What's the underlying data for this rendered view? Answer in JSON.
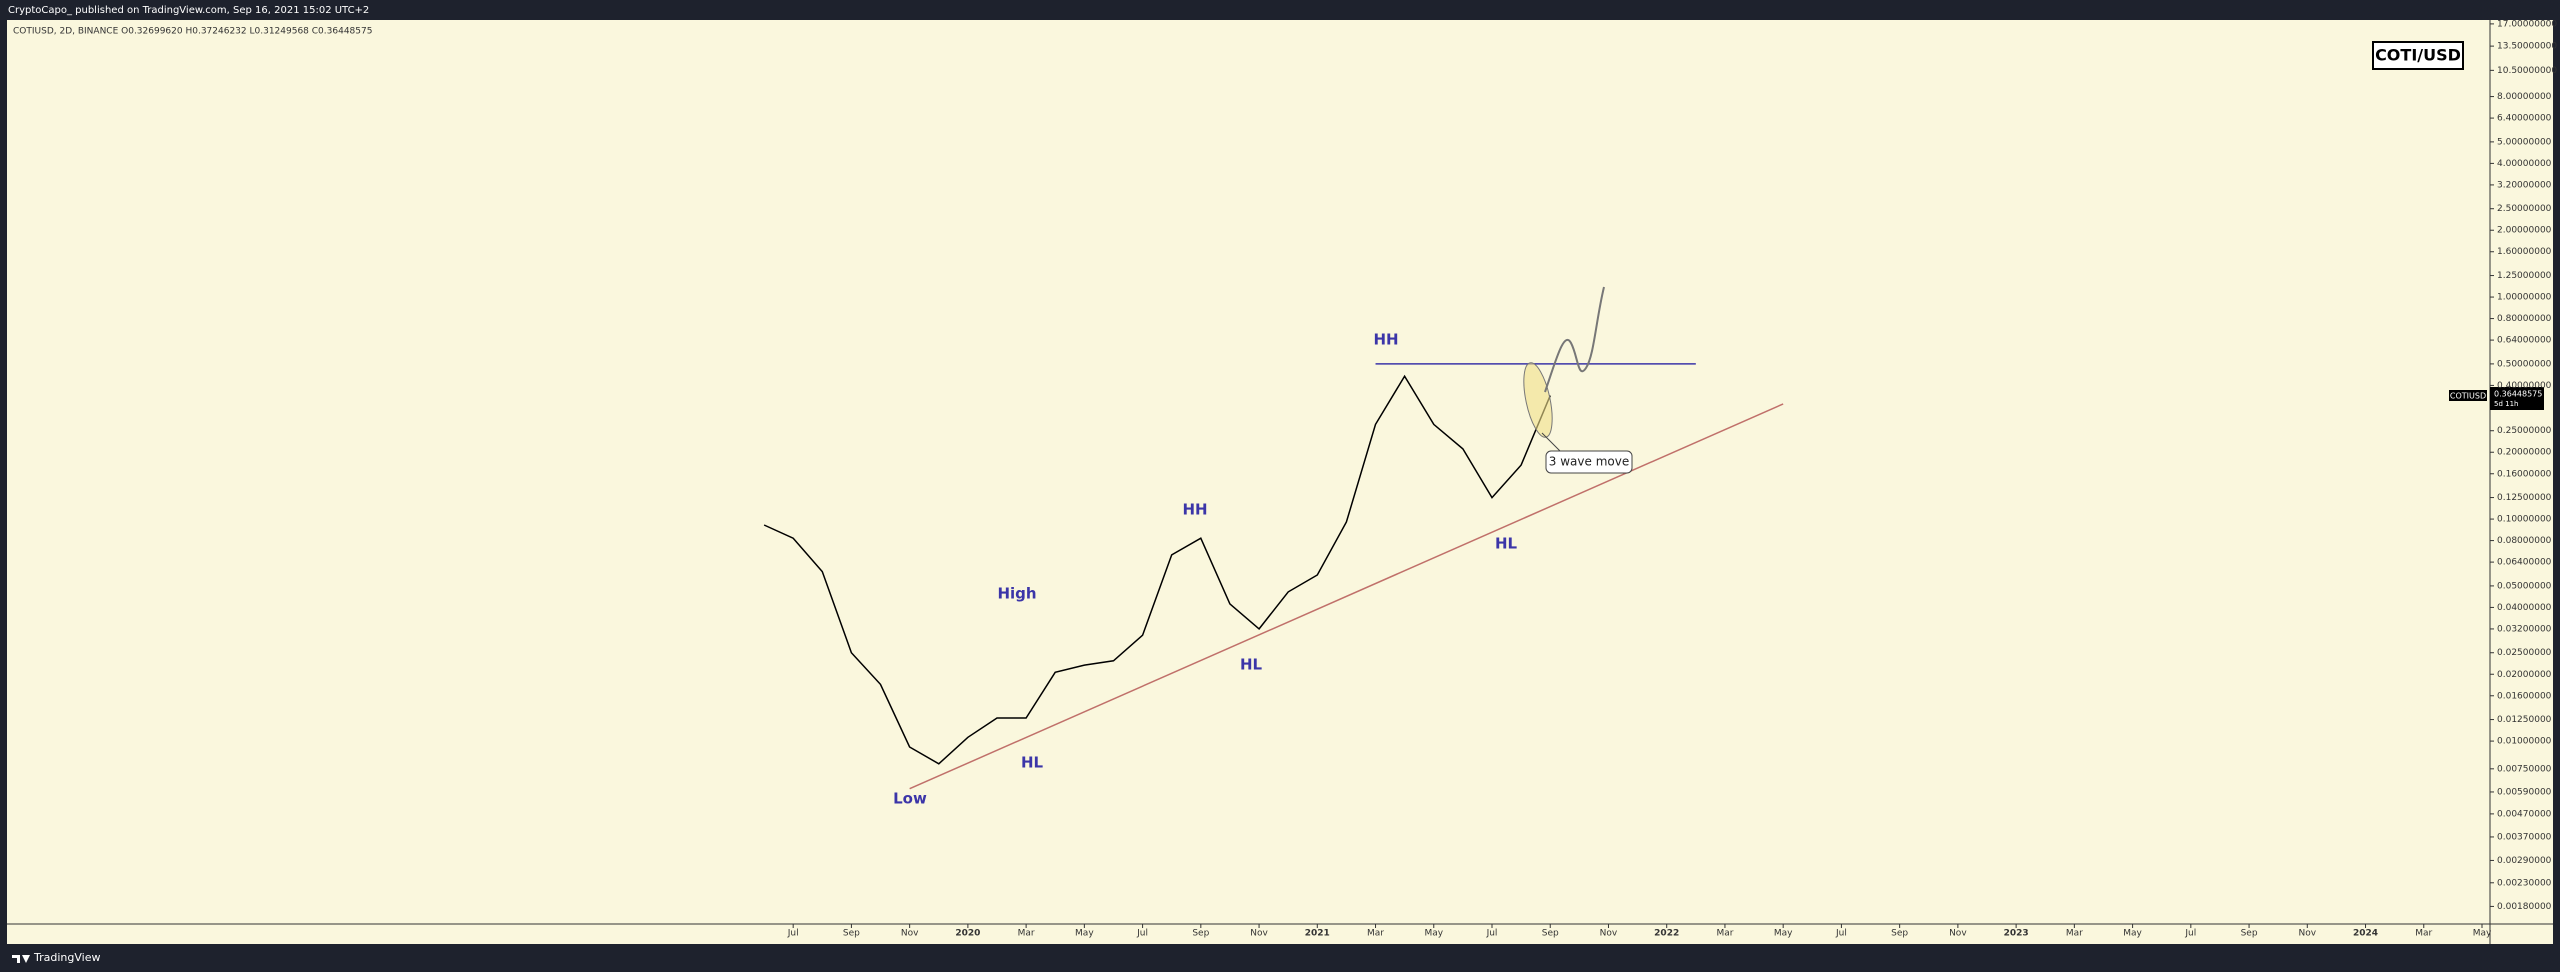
{
  "header": "CryptoCapo_ published on TradingView.com, Sep 16, 2021 15:02 UTC+2",
  "footer": "TradingView",
  "chart_data": {
    "type": "line",
    "legend_text": "COTIUSD, 2D, BINANCE  O0.32699620  H0.37246232  L0.31249568  C0.36448575",
    "symbol_box": "COTI/USD",
    "price_tag": {
      "symbol": "COTIUSD",
      "price": "0.36448575",
      "countdown": "5d 11h"
    },
    "log_scale": true,
    "ylim": [
      0.0015,
      17.7
    ],
    "xlim": [
      "2017-04",
      "2024-05"
    ],
    "yticks": [
      {
        "value": 17,
        "label": "17.00000000"
      },
      {
        "value": 13.5,
        "label": "13.50000000"
      },
      {
        "value": 10.5,
        "label": "10.50000000"
      },
      {
        "value": 8,
        "label": "8.00000000"
      },
      {
        "value": 6.4,
        "label": "6.40000000"
      },
      {
        "value": 5,
        "label": "5.00000000"
      },
      {
        "value": 4,
        "label": "4.00000000"
      },
      {
        "value": 3.2,
        "label": "3.20000000"
      },
      {
        "value": 2.5,
        "label": "2.50000000"
      },
      {
        "value": 2,
        "label": "2.00000000"
      },
      {
        "value": 1.6,
        "label": "1.60000000"
      },
      {
        "value": 1.25,
        "label": "1.25000000"
      },
      {
        "value": 1,
        "label": "1.00000000"
      },
      {
        "value": 0.8,
        "label": "0.80000000"
      },
      {
        "value": 0.64,
        "label": "0.64000000"
      },
      {
        "value": 0.5,
        "label": "0.50000000"
      },
      {
        "value": 0.4,
        "label": "0.40000000"
      },
      {
        "value": 0.25,
        "label": "0.25000000"
      },
      {
        "value": 0.2,
        "label": "0.20000000"
      },
      {
        "value": 0.16,
        "label": "0.16000000"
      },
      {
        "value": 0.125,
        "label": "0.12500000"
      },
      {
        "value": 0.1,
        "label": "0.10000000"
      },
      {
        "value": 0.08,
        "label": "0.08000000"
      },
      {
        "value": 0.064,
        "label": "0.06400000"
      },
      {
        "value": 0.05,
        "label": "0.05000000"
      },
      {
        "value": 0.04,
        "label": "0.04000000"
      },
      {
        "value": 0.032,
        "label": "0.03200000"
      },
      {
        "value": 0.025,
        "label": "0.02500000"
      },
      {
        "value": 0.02,
        "label": "0.02000000"
      },
      {
        "value": 0.016,
        "label": "0.01600000"
      },
      {
        "value": 0.0125,
        "label": "0.01250000"
      },
      {
        "value": 0.01,
        "label": "0.01000000"
      },
      {
        "value": 0.0075,
        "label": "0.00750000"
      },
      {
        "value": 0.0059,
        "label": "0.00590000"
      },
      {
        "value": 0.0047,
        "label": "0.00470000"
      },
      {
        "value": 0.0037,
        "label": "0.00370000"
      },
      {
        "value": 0.0029,
        "label": "0.00290000"
      },
      {
        "value": 0.0023,
        "label": "0.00230000"
      },
      {
        "value": 0.0018,
        "label": "0.00180000"
      }
    ],
    "xticks": [
      {
        "value": "2019-07",
        "label": "Jul"
      },
      {
        "value": "2019-09",
        "label": "Sep"
      },
      {
        "value": "2019-11",
        "label": "Nov"
      },
      {
        "value": "2020-01",
        "label": "2020"
      },
      {
        "value": "2020-03",
        "label": "Mar"
      },
      {
        "value": "2020-05",
        "label": "May"
      },
      {
        "value": "2020-07",
        "label": "Jul"
      },
      {
        "value": "2020-09",
        "label": "Sep"
      },
      {
        "value": "2020-11",
        "label": "Nov"
      },
      {
        "value": "2021-01",
        "label": "2021"
      },
      {
        "value": "2021-03",
        "label": "Mar"
      },
      {
        "value": "2021-05",
        "label": "May"
      },
      {
        "value": "2021-07",
        "label": "Jul"
      },
      {
        "value": "2021-09",
        "label": "Sep"
      },
      {
        "value": "2021-11",
        "label": "Nov"
      },
      {
        "value": "2022-01",
        "label": "2022"
      },
      {
        "value": "2022-03",
        "label": "Mar"
      },
      {
        "value": "2022-05",
        "label": "May"
      },
      {
        "value": "2022-07",
        "label": "Jul"
      },
      {
        "value": "2022-09",
        "label": "Sep"
      },
      {
        "value": "2022-11",
        "label": "Nov"
      },
      {
        "value": "2023-01",
        "label": "2023"
      },
      {
        "value": "2023-03",
        "label": "Mar"
      },
      {
        "value": "2023-05",
        "label": "May"
      },
      {
        "value": "2023-07",
        "label": "Jul"
      },
      {
        "value": "2023-09",
        "label": "Sep"
      },
      {
        "value": "2023-11",
        "label": "Nov"
      },
      {
        "value": "2024-01",
        "label": "2024"
      },
      {
        "value": "2024-03",
        "label": "Mar"
      },
      {
        "value": "2024-05",
        "label": "May"
      }
    ],
    "x": [
      "2019-06",
      "2019-07",
      "2019-08",
      "2019-09",
      "2019-10",
      "2019-11",
      "2019-12",
      "2020-01",
      "2020-02",
      "2020-03",
      "2020-04",
      "2020-05",
      "2020-06",
      "2020-07",
      "2020-08",
      "2020-09",
      "2020-10",
      "2020-11",
      "2020-12",
      "2021-01",
      "2021-02",
      "2021-03",
      "2021-04",
      "2021-05",
      "2021-06",
      "2021-07",
      "2021-08",
      "2021-09"
    ],
    "series": [
      {
        "color": "#000000",
        "values": [
          0.094,
          0.082,
          0.058,
          0.025,
          0.018,
          0.0094,
          0.0079,
          0.0104,
          0.0127,
          0.0127,
          0.0204,
          0.022,
          0.023,
          0.03,
          0.069,
          0.082,
          0.0415,
          0.032,
          0.047,
          0.056,
          0.097,
          0.267,
          0.44,
          0.267,
          0.207,
          0.125,
          0.175,
          0.36
        ]
      }
    ],
    "lines": [
      {
        "color": "#3b35a8",
        "x": [
          "2021-03",
          "2022-02"
        ],
        "y": [
          0.5,
          0.5
        ]
      },
      {
        "color": "#c0706a",
        "x": [
          "2019-11",
          "2022-05"
        ],
        "y": [
          0.0061,
          0.33
        ]
      }
    ],
    "annotations": [
      "HH",
      "HH",
      "High",
      "HL",
      "Low",
      "HL",
      "HL",
      "3 wave move"
    ]
  }
}
